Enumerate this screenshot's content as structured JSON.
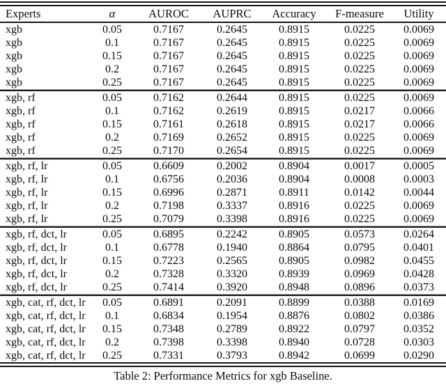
{
  "page": {
    "background_color": "#ffffff",
    "text_color": "#0a0a0a",
    "rule_color": "#141414"
  },
  "table": {
    "caption": "Table 2: Performance Metrics for xgb Baseline.",
    "columns": [
      "Experts",
      "α",
      "AUROC",
      "AUPRC",
      "Accuracy",
      "F-measure",
      "Utility"
    ],
    "groups": [
      {
        "expert": "xgb",
        "rows": [
          [
            "0.05",
            "0.7167",
            "0.2645",
            "0.8915",
            "0.0225",
            "0.0069"
          ],
          [
            "0.1",
            "0.7167",
            "0.2645",
            "0.8915",
            "0.0225",
            "0.0069"
          ],
          [
            "0.15",
            "0.7167",
            "0.2645",
            "0.8915",
            "0.0225",
            "0.0069"
          ],
          [
            "0.2",
            "0.7167",
            "0.2645",
            "0.8915",
            "0.0225",
            "0.0069"
          ],
          [
            "0.25",
            "0.7167",
            "0.2645",
            "0.8915",
            "0.0225",
            "0.0069"
          ]
        ]
      },
      {
        "expert": "xgb, rf",
        "rows": [
          [
            "0.05",
            "0.7162",
            "0.2644",
            "0.8915",
            "0.0225",
            "0.0069"
          ],
          [
            "0.1",
            "0.7162",
            "0.2619",
            "0.8915",
            "0.0217",
            "0.0066"
          ],
          [
            "0.15",
            "0.7161",
            "0.2618",
            "0.8915",
            "0.0217",
            "0.0066"
          ],
          [
            "0.2",
            "0.7169",
            "0.2652",
            "0.8915",
            "0.0225",
            "0.0069"
          ],
          [
            "0.25",
            "0.7170",
            "0.2654",
            "0.8915",
            "0.0225",
            "0.0069"
          ]
        ]
      },
      {
        "expert": "xgb, rf, lr",
        "rows": [
          [
            "0.05",
            "0.6609",
            "0.2002",
            "0.8904",
            "0.0017",
            "0.0005"
          ],
          [
            "0.1",
            "0.6756",
            "0.2036",
            "0.8904",
            "0.0008",
            "0.0003"
          ],
          [
            "0.15",
            "0.6996",
            "0.2871",
            "0.8911",
            "0.0142",
            "0.0044"
          ],
          [
            "0.2",
            "0.7198",
            "0.3337",
            "0.8916",
            "0.0225",
            "0.0069"
          ],
          [
            "0.25",
            "0.7079",
            "0.3398",
            "0.8916",
            "0.0225",
            "0.0069"
          ]
        ]
      },
      {
        "expert": "xgb, rf, dct, lr",
        "rows": [
          [
            "0.05",
            "0.6895",
            "0.2242",
            "0.8905",
            "0.0573",
            "0.0264"
          ],
          [
            "0.1",
            "0.6778",
            "0.1940",
            "0.8864",
            "0.0795",
            "0.0401"
          ],
          [
            "0.15",
            "0.7223",
            "0.2565",
            "0.8905",
            "0.0982",
            "0.0455"
          ],
          [
            "0.2",
            "0.7328",
            "0.3320",
            "0.8939",
            "0.0969",
            "0.0428"
          ],
          [
            "0.25",
            "0.7414",
            "0.3920",
            "0.8948",
            "0.0896",
            "0.0373"
          ]
        ]
      },
      {
        "expert": "xgb, cat, rf, dct, lr",
        "rows": [
          [
            "0.05",
            "0.6891",
            "0.2091",
            "0.8899",
            "0.0388",
            "0.0169"
          ],
          [
            "0.1",
            "0.6834",
            "0.1954",
            "0.8876",
            "0.0802",
            "0.0386"
          ],
          [
            "0.15",
            "0.7348",
            "0.2789",
            "0.8922",
            "0.0797",
            "0.0352"
          ],
          [
            "0.2",
            "0.7398",
            "0.3398",
            "0.8940",
            "0.0728",
            "0.0303"
          ],
          [
            "0.25",
            "0.7331",
            "0.3793",
            "0.8942",
            "0.0699",
            "0.0290"
          ]
        ]
      }
    ]
  },
  "chart_data": {
    "type": "table",
    "title": "Table 2: Performance Metrics for xgb Baseline.",
    "columns": [
      "Experts",
      "α",
      "AUROC",
      "AUPRC",
      "Accuracy",
      "F-measure",
      "Utility"
    ],
    "rows": [
      [
        "xgb",
        "0.05",
        "0.7167",
        "0.2645",
        "0.8915",
        "0.0225",
        "0.0069"
      ],
      [
        "xgb",
        "0.1",
        "0.7167",
        "0.2645",
        "0.8915",
        "0.0225",
        "0.0069"
      ],
      [
        "xgb",
        "0.15",
        "0.7167",
        "0.2645",
        "0.8915",
        "0.0225",
        "0.0069"
      ],
      [
        "xgb",
        "0.2",
        "0.7167",
        "0.2645",
        "0.8915",
        "0.0225",
        "0.0069"
      ],
      [
        "xgb",
        "0.25",
        "0.7167",
        "0.2645",
        "0.8915",
        "0.0225",
        "0.0069"
      ],
      [
        "xgb, rf",
        "0.05",
        "0.7162",
        "0.2644",
        "0.8915",
        "0.0225",
        "0.0069"
      ],
      [
        "xgb, rf",
        "0.1",
        "0.7162",
        "0.2619",
        "0.8915",
        "0.0217",
        "0.0066"
      ],
      [
        "xgb, rf",
        "0.15",
        "0.7161",
        "0.2618",
        "0.8915",
        "0.0217",
        "0.0066"
      ],
      [
        "xgb, rf",
        "0.2",
        "0.7169",
        "0.2652",
        "0.8915",
        "0.0225",
        "0.0069"
      ],
      [
        "xgb, rf",
        "0.25",
        "0.7170",
        "0.2654",
        "0.8915",
        "0.0225",
        "0.0069"
      ],
      [
        "xgb, rf, lr",
        "0.05",
        "0.6609",
        "0.2002",
        "0.8904",
        "0.0017",
        "0.0005"
      ],
      [
        "xgb, rf, lr",
        "0.1",
        "0.6756",
        "0.2036",
        "0.8904",
        "0.0008",
        "0.0003"
      ],
      [
        "xgb, rf, lr",
        "0.15",
        "0.6996",
        "0.2871",
        "0.8911",
        "0.0142",
        "0.0044"
      ],
      [
        "xgb, rf, lr",
        "0.2",
        "0.7198",
        "0.3337",
        "0.8916",
        "0.0225",
        "0.0069"
      ],
      [
        "xgb, rf, lr",
        "0.25",
        "0.7079",
        "0.3398",
        "0.8916",
        "0.0225",
        "0.0069"
      ],
      [
        "xgb, rf, dct, lr",
        "0.05",
        "0.6895",
        "0.2242",
        "0.8905",
        "0.0573",
        "0.0264"
      ],
      [
        "xgb, rf, dct, lr",
        "0.1",
        "0.6778",
        "0.1940",
        "0.8864",
        "0.0795",
        "0.0401"
      ],
      [
        "xgb, rf, dct, lr",
        "0.15",
        "0.7223",
        "0.2565",
        "0.8905",
        "0.0982",
        "0.0455"
      ],
      [
        "xgb, rf, dct, lr",
        "0.2",
        "0.7328",
        "0.3320",
        "0.8939",
        "0.0969",
        "0.0428"
      ],
      [
        "xgb, rf, dct, lr",
        "0.25",
        "0.7414",
        "0.3920",
        "0.8948",
        "0.0896",
        "0.0373"
      ],
      [
        "xgb, cat, rf, dct, lr",
        "0.05",
        "0.6891",
        "0.2091",
        "0.8899",
        "0.0388",
        "0.0169"
      ],
      [
        "xgb, cat, rf, dct, lr",
        "0.1",
        "0.6834",
        "0.1954",
        "0.8876",
        "0.0802",
        "0.0386"
      ],
      [
        "xgb, cat, rf, dct, lr",
        "0.15",
        "0.7348",
        "0.2789",
        "0.8922",
        "0.0797",
        "0.0352"
      ],
      [
        "xgb, cat, rf, dct, lr",
        "0.2",
        "0.7398",
        "0.3398",
        "0.8940",
        "0.0728",
        "0.0303"
      ],
      [
        "xgb, cat, rf, dct, lr",
        "0.25",
        "0.7331",
        "0.3793",
        "0.8942",
        "0.0699",
        "0.0290"
      ]
    ]
  }
}
